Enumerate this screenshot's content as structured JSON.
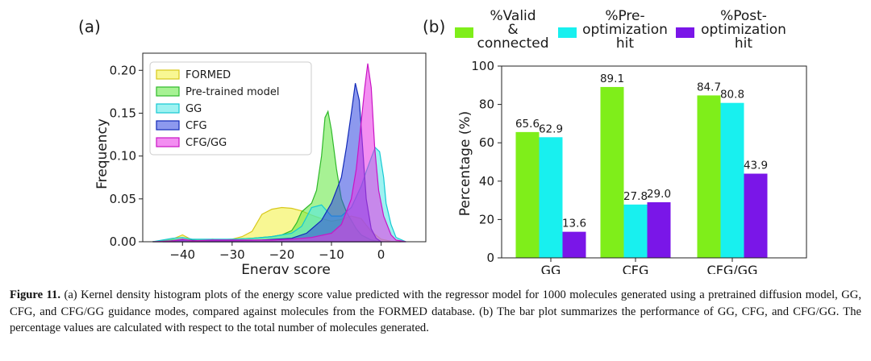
{
  "figure": {
    "panel_a_label": "(a)",
    "panel_b_label": "(b)"
  },
  "chart_data": [
    {
      "type": "area",
      "title": "",
      "xlabel": "Energy score",
      "ylabel": "Frequency",
      "xlim": [
        -48,
        9
      ],
      "ylim": [
        0,
        0.22
      ],
      "x_ticks": [
        -40,
        -30,
        -20,
        -10,
        0
      ],
      "y_ticks": [
        0.0,
        0.05,
        0.1,
        0.15,
        0.2
      ],
      "x_tick_labels": [
        "−40",
        "−30",
        "−20",
        "−10",
        "0"
      ],
      "y_tick_labels": [
        "0.00",
        "0.05",
        "0.10",
        "0.15",
        "0.20"
      ],
      "legend_position": "top-left",
      "grid": false,
      "series": [
        {
          "name": "FORMED",
          "color": "#f2f03a",
          "edge": "#d8c81c",
          "points": [
            [
              -46,
              0
            ],
            [
              -44,
              0.001
            ],
            [
              -42,
              0.003
            ],
            [
              -40,
              0.008
            ],
            [
              -38,
              0.002
            ],
            [
              -36,
              0.001
            ],
            [
              -34,
              0.003
            ],
            [
              -32,
              0.002
            ],
            [
              -30,
              0.003
            ],
            [
              -28,
              0.006
            ],
            [
              -26,
              0.012
            ],
            [
              -24,
              0.032
            ],
            [
              -22,
              0.038
            ],
            [
              -20,
              0.04
            ],
            [
              -18,
              0.039
            ],
            [
              -16,
              0.036
            ],
            [
              -14,
              0.031
            ],
            [
              -12,
              0.027
            ],
            [
              -10,
              0.024
            ],
            [
              -8,
              0.026
            ],
            [
              -6,
              0.03
            ],
            [
              -4,
              0.027
            ],
            [
              -2,
              0.012
            ],
            [
              0,
              0.003
            ],
            [
              2,
              0.0005
            ],
            [
              4,
              0
            ]
          ]
        },
        {
          "name": "Pre-trained model",
          "color": "#5ee83c",
          "edge": "#2fb92a",
          "points": [
            [
              -46,
              0
            ],
            [
              -42,
              0.002
            ],
            [
              -40,
              0.003
            ],
            [
              -38,
              0.002
            ],
            [
              -34,
              0.002
            ],
            [
              -30,
              0.003
            ],
            [
              -26,
              0.004
            ],
            [
              -22,
              0.006
            ],
            [
              -20,
              0.008
            ],
            [
              -18,
              0.013
            ],
            [
              -17,
              0.022
            ],
            [
              -16,
              0.035
            ],
            [
              -15,
              0.04
            ],
            [
              -14,
              0.045
            ],
            [
              -13,
              0.06
            ],
            [
              -12,
              0.1
            ],
            [
              -11.3,
              0.145
            ],
            [
              -10.7,
              0.152
            ],
            [
              -10,
              0.13
            ],
            [
              -9,
              0.085
            ],
            [
              -8,
              0.05
            ],
            [
              -7,
              0.035
            ],
            [
              -6,
              0.025
            ],
            [
              -5,
              0.015
            ],
            [
              -4,
              0.008
            ],
            [
              -2,
              0.002
            ],
            [
              0,
              0
            ]
          ]
        },
        {
          "name": "GG",
          "color": "#4fe8e6",
          "edge": "#14c9d3",
          "points": [
            [
              -46,
              0
            ],
            [
              -42,
              0.004
            ],
            [
              -40,
              0.005
            ],
            [
              -38,
              0.003
            ],
            [
              -34,
              0.003
            ],
            [
              -30,
              0.003
            ],
            [
              -26,
              0.004
            ],
            [
              -22,
              0.006
            ],
            [
              -18,
              0.01
            ],
            [
              -16,
              0.018
            ],
            [
              -14,
              0.04
            ],
            [
              -12,
              0.043
            ],
            [
              -10,
              0.03
            ],
            [
              -8,
              0.03
            ],
            [
              -6,
              0.04
            ],
            [
              -4,
              0.065
            ],
            [
              -3,
              0.082
            ],
            [
              -2,
              0.098
            ],
            [
              -1.2,
              0.11
            ],
            [
              -0.3,
              0.105
            ],
            [
              0.5,
              0.075
            ],
            [
              1,
              0.045
            ],
            [
              2,
              0.02
            ],
            [
              3,
              0.005
            ],
            [
              5,
              0
            ]
          ]
        },
        {
          "name": "CFG",
          "color": "#3046e0",
          "edge": "#122ab8",
          "points": [
            [
              -44,
              0
            ],
            [
              -42,
              0.001
            ],
            [
              -40,
              0.002
            ],
            [
              -36,
              0.001
            ],
            [
              -30,
              0.001
            ],
            [
              -24,
              0.002
            ],
            [
              -18,
              0.004
            ],
            [
              -15,
              0.01
            ],
            [
              -12,
              0.025
            ],
            [
              -10,
              0.045
            ],
            [
              -8,
              0.075
            ],
            [
              -7,
              0.11
            ],
            [
              -6,
              0.15
            ],
            [
              -5.2,
              0.185
            ],
            [
              -4.4,
              0.165
            ],
            [
              -3.6,
              0.1
            ],
            [
              -3,
              0.05
            ],
            [
              -2,
              0.015
            ],
            [
              -1,
              0.004
            ],
            [
              0,
              0
            ]
          ]
        },
        {
          "name": "CFG/GG",
          "color": "#ea32e6",
          "edge": "#c914c4",
          "points": [
            [
              -46,
              0
            ],
            [
              -42,
              0.001
            ],
            [
              -40,
              0.003
            ],
            [
              -38,
              0.001
            ],
            [
              -34,
              0.002
            ],
            [
              -30,
              0.002
            ],
            [
              -22,
              0.002
            ],
            [
              -18,
              0.003
            ],
            [
              -14,
              0.005
            ],
            [
              -10,
              0.01
            ],
            [
              -8,
              0.02
            ],
            [
              -6,
              0.05
            ],
            [
              -5,
              0.085
            ],
            [
              -4,
              0.14
            ],
            [
              -3.3,
              0.18
            ],
            [
              -2.7,
              0.208
            ],
            [
              -2,
              0.18
            ],
            [
              -1.3,
              0.11
            ],
            [
              -0.5,
              0.06
            ],
            [
              0.5,
              0.03
            ],
            [
              2,
              0.008
            ],
            [
              3,
              0.002
            ],
            [
              5,
              0
            ]
          ]
        }
      ]
    },
    {
      "type": "bar",
      "title": "",
      "xlabel": "",
      "ylabel": "Percentage (%)",
      "ylim": [
        0,
        100
      ],
      "y_ticks": [
        0,
        20,
        40,
        60,
        80,
        100
      ],
      "categories": [
        "GG",
        "CFG",
        "CFG/GG"
      ],
      "legend_position": "top",
      "grid": false,
      "series": [
        {
          "name": "%Valid & connected",
          "color": "#7fee1a",
          "values": [
            65.6,
            89.1,
            84.7
          ],
          "labels": [
            "65.6",
            "89.1",
            "84.7"
          ]
        },
        {
          "name": "%Pre-optimization hit",
          "color": "#18f0ef",
          "values": [
            62.9,
            27.8,
            80.8
          ],
          "labels": [
            "62.9",
            "27.8",
            "80.8"
          ]
        },
        {
          "name": "%Post-optimization hit",
          "color": "#7a16e8",
          "values": [
            13.6,
            29.0,
            43.9
          ],
          "labels": [
            "13.6",
            "29.0",
            "43.9"
          ]
        }
      ],
      "legend_lines": [
        [
          "%Valid",
          "&",
          "connected"
        ],
        [
          "%Pre-",
          "optimization",
          "hit"
        ],
        [
          "%Post-",
          "optimization",
          "hit"
        ]
      ]
    }
  ],
  "caption": {
    "label": "Figure 11.",
    "text": " (a) Kernel density histogram plots of the energy score value predicted with the regressor model for 1000 molecules generated using a pretrained diffusion model, GG, CFG, and CFG/GG guidance modes, compared against molecules from the FORMED database. (b) The bar plot summarizes the performance of GG, CFG, and CFG/GG. The percentage values are calculated with respect to the total number of molecules generated."
  }
}
